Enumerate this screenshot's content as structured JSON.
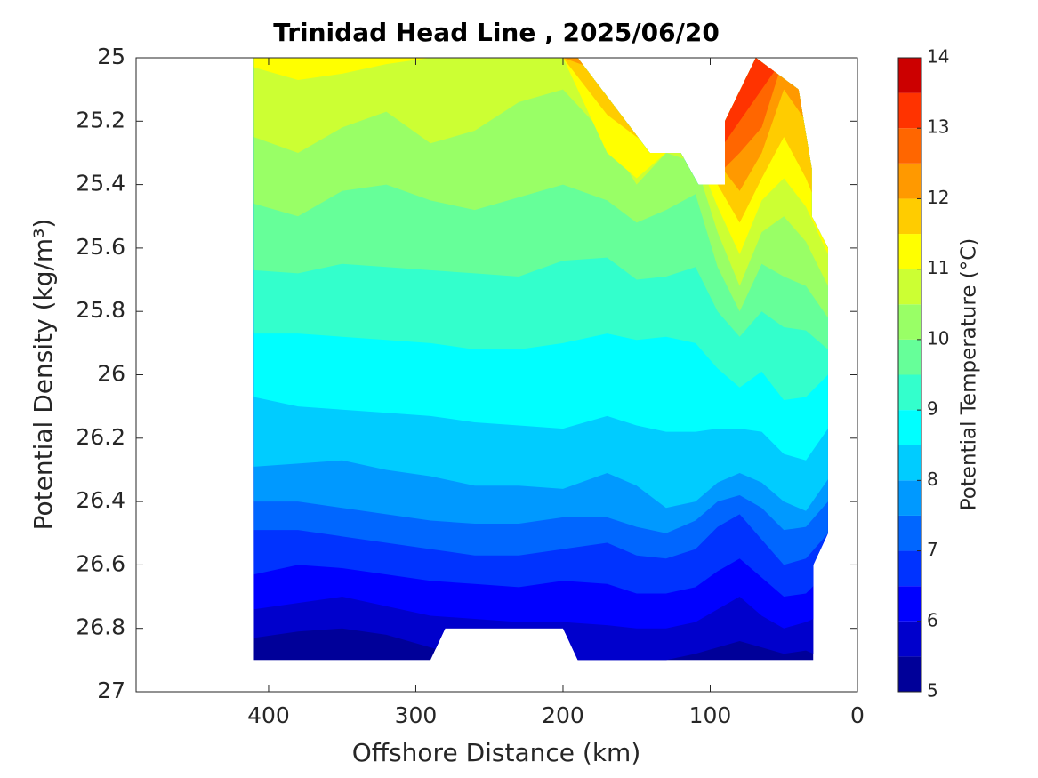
{
  "chart_data": {
    "type": "contour",
    "title": "Trinidad Head Line , 2025/06/20",
    "x_label": "Offshore Distance (km)",
    "y_label": "Potential Density (kg/m³)",
    "colorbar_label": "Potential Temperature (°C)",
    "xlim": [
      490,
      0
    ],
    "xticks": [
      400,
      300,
      200,
      100,
      0
    ],
    "ylim": [
      25,
      27
    ],
    "yticks": [
      25,
      25.2,
      25.4,
      25.6,
      25.8,
      26,
      26.2,
      26.4,
      26.6,
      26.8,
      27
    ],
    "y_reversed": true,
    "levels": [
      5,
      5.5,
      6,
      6.5,
      7,
      7.5,
      8,
      8.5,
      9,
      9.5,
      10,
      10.5,
      11,
      11.5,
      12,
      12.5,
      13,
      13.5,
      14
    ],
    "colors": [
      "#000099",
      "#0000cc",
      "#0000ff",
      "#0033ff",
      "#0066ff",
      "#0099ff",
      "#00ccff",
      "#00ffff",
      "#33ffcc",
      "#66ff99",
      "#99ff66",
      "#ccff33",
      "#ffff00",
      "#ffcc00",
      "#ff9900",
      "#ff6600",
      "#ff3300",
      "#cc0000"
    ],
    "cticks": [
      5,
      6,
      7,
      8,
      9,
      10,
      11,
      12,
      13,
      14
    ],
    "domain": {
      "x": [
        410,
        190,
        141,
        120,
        108,
        90,
        90,
        69,
        40,
        31,
        31,
        20,
        20,
        30,
        30,
        190,
        200,
        280,
        290,
        410
      ],
      "density": [
        25,
        25,
        25.3,
        25.3,
        25.4,
        25.4,
        25.2,
        25.0,
        25.1,
        25.35,
        25.5,
        25.6,
        26.5,
        26.6,
        26.9,
        26.9,
        26.8,
        26.8,
        26.9,
        26.9
      ]
    },
    "x": [
      410,
      380,
      350,
      320,
      290,
      260,
      230,
      200,
      170,
      150,
      130,
      110,
      95,
      80,
      65,
      50,
      35,
      20
    ],
    "isotherm_density": [
      [
        26.83,
        26.81,
        26.8,
        26.82,
        26.86,
        26.9,
        26.9,
        26.9,
        26.9,
        26.9,
        26.9,
        26.88,
        26.86,
        26.84,
        26.86,
        26.88,
        26.87,
        26.9
      ],
      [
        26.74,
        26.72,
        26.7,
        26.73,
        26.76,
        26.77,
        26.78,
        26.78,
        26.79,
        26.8,
        26.8,
        26.78,
        26.74,
        26.7,
        26.76,
        26.8,
        26.78,
        26.75
      ],
      [
        26.63,
        26.6,
        26.61,
        26.63,
        26.65,
        26.66,
        26.67,
        26.65,
        26.66,
        26.69,
        26.69,
        26.67,
        26.62,
        26.58,
        26.64,
        26.7,
        26.69,
        26.62
      ],
      [
        26.49,
        26.49,
        26.51,
        26.53,
        26.55,
        26.57,
        26.57,
        26.55,
        26.53,
        26.57,
        26.58,
        26.55,
        26.48,
        26.44,
        26.52,
        26.6,
        26.58,
        26.5
      ],
      [
        26.4,
        26.4,
        26.42,
        26.44,
        26.46,
        26.47,
        26.47,
        26.45,
        26.45,
        26.48,
        26.5,
        26.46,
        26.4,
        26.38,
        26.42,
        26.49,
        26.48,
        26.4
      ],
      [
        26.29,
        26.28,
        26.27,
        26.3,
        26.32,
        26.35,
        26.35,
        26.36,
        26.31,
        26.35,
        26.42,
        26.4,
        26.34,
        26.31,
        26.34,
        26.4,
        26.43,
        26.33
      ],
      [
        26.07,
        26.1,
        26.11,
        26.12,
        26.13,
        26.15,
        26.16,
        26.17,
        26.13,
        26.16,
        26.18,
        26.18,
        26.17,
        26.17,
        26.18,
        26.25,
        26.27,
        26.17
      ],
      [
        25.87,
        25.87,
        25.88,
        25.89,
        25.9,
        25.92,
        25.92,
        25.9,
        25.87,
        25.89,
        25.88,
        25.9,
        25.98,
        26.04,
        25.99,
        26.08,
        26.07,
        26.0
      ],
      [
        25.67,
        25.68,
        25.65,
        25.66,
        25.67,
        25.68,
        25.69,
        25.64,
        25.63,
        25.7,
        25.69,
        25.66,
        25.8,
        25.88,
        25.8,
        25.85,
        25.86,
        25.92
      ],
      [
        25.46,
        25.5,
        25.42,
        25.4,
        25.45,
        25.48,
        25.44,
        25.4,
        25.45,
        25.52,
        25.48,
        25.43,
        25.66,
        25.8,
        25.65,
        25.69,
        25.72,
        25.82
      ],
      [
        25.25,
        25.3,
        25.22,
        25.17,
        25.27,
        25.23,
        25.14,
        25.1,
        25.25,
        25.4,
        25.3,
        25.33,
        25.55,
        25.72,
        25.55,
        25.5,
        25.58,
        25.72
      ],
      [
        25.03,
        25.07,
        25.05,
        25.02,
        25.0,
        25.0,
        25.0,
        25.0,
        25.3,
        25.38,
        25.3,
        25.3,
        25.47,
        25.62,
        25.45,
        25.38,
        25.47,
        25.62
      ],
      [
        25.0,
        25.0,
        25.0,
        25.0,
        25.0,
        25.0,
        25.0,
        25.0,
        25.18,
        25.25,
        25.3,
        25.3,
        25.4,
        25.52,
        25.38,
        25.25,
        25.38,
        25.55
      ],
      [
        25.0,
        25.0,
        25.0,
        25.0,
        25.0,
        25.0,
        25.0,
        25.0,
        25.05,
        25.15,
        25.3,
        25.3,
        25.33,
        25.42,
        25.3,
        25.1,
        25.2,
        25.5
      ],
      [
        25.0,
        25.0,
        25.0,
        25.0,
        25.0,
        25.0,
        25.0,
        25.0,
        25.0,
        25.0,
        25.0,
        25.0,
        25.37,
        25.3,
        25.22,
        25.0,
        25.0,
        25.5
      ],
      [
        25.0,
        25.0,
        25.0,
        25.0,
        25.0,
        25.0,
        25.0,
        25.0,
        25.0,
        25.0,
        25.0,
        25.0,
        25.3,
        25.2,
        25.1,
        25.0,
        25.0,
        25.0
      ]
    ]
  }
}
